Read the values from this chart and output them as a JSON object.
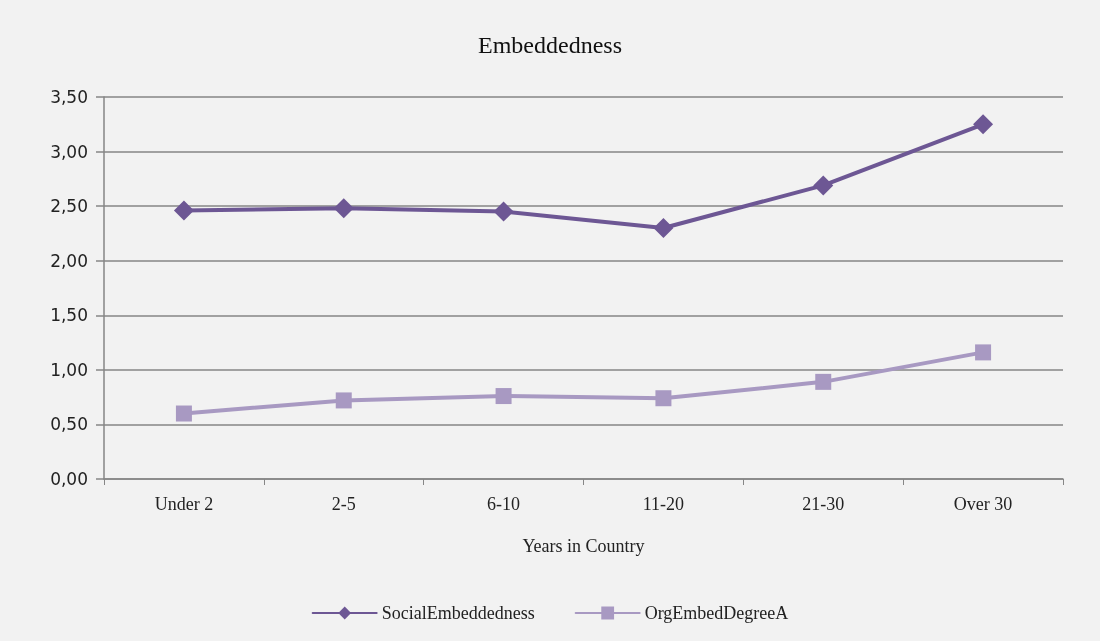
{
  "chart_data": {
    "type": "line",
    "title": "Embeddedness",
    "xlabel": "Years in Country",
    "categories": [
      "Under 2",
      "2-5",
      "6-10",
      "11-20",
      "21-30",
      "Over 30"
    ],
    "series": [
      {
        "name": "SocialEmbeddedness",
        "color": "#6d5794",
        "marker": "diamond",
        "values": [
          2.46,
          2.48,
          2.45,
          2.3,
          2.69,
          3.25
        ]
      },
      {
        "name": "OrgEmbedDegreeA",
        "color": "#a899c2",
        "marker": "square",
        "values": [
          0.6,
          0.72,
          0.76,
          0.74,
          0.89,
          1.16
        ]
      }
    ],
    "ylim": [
      0,
      3.5
    ],
    "yticks": [
      {
        "value": 0,
        "label": "0,00"
      },
      {
        "value": 0.5,
        "label": "0,50"
      },
      {
        "value": 1,
        "label": "1,00"
      },
      {
        "value": 1.5,
        "label": "1,50"
      },
      {
        "value": 2,
        "label": "2,00"
      },
      {
        "value": 2.5,
        "label": "2,50"
      },
      {
        "value": 3,
        "label": "3,00"
      },
      {
        "value": 3.5,
        "label": "3,50"
      }
    ],
    "grid": "y",
    "legend": "bottom",
    "line_style": "solid"
  }
}
